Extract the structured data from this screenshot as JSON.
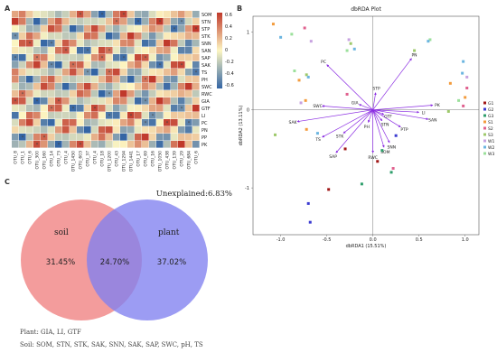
{
  "chart_data": [
    {
      "panel": "A",
      "type": "heatmap",
      "row_labels": [
        "SOM",
        "STN",
        "STP",
        "STK",
        "SNN",
        "SAN",
        "SAP",
        "SAK",
        "TS",
        "PH",
        "SWC",
        "RWC",
        "GIA",
        "GTF",
        "LI",
        "PC",
        "PN",
        "PP",
        "PK"
      ],
      "col_labels": [
        "OTU_8",
        "OTU_1",
        "OTU_6",
        "OTU_300",
        "OTU_160",
        "OTU_14",
        "OTU_73",
        "OTU_4",
        "OTU_1450",
        "OTU_603",
        "OTU_37",
        "OTU_4",
        "OTU_18",
        "OTU_1200",
        "OTU_43",
        "OTU_1294",
        "OTU_1441",
        "OTU_17",
        "OTU_69",
        "OTU_16",
        "OTU_1050",
        "OTU_438",
        "OTU_139",
        "OTU_29",
        "OTU_684",
        "OTU_6"
      ],
      "legend_ticks": [
        "0.6",
        "0.4",
        "0.2",
        "0",
        "-0.2",
        "-0.4",
        "-0.6"
      ],
      "color_scale": {
        "high": "#c0392b",
        "mid": "#fdf6c2",
        "low": "#3465a4"
      }
    },
    {
      "panel": "B",
      "type": "scatter",
      "title": "dbRDA Plot",
      "xlabel": "dbRDA1 (15.51%)",
      "ylabel": "dbRDA2 (13.11%)",
      "xlim": [
        -1.3,
        1.15
      ],
      "ylim": [
        -1.6,
        1.2
      ],
      "x_ticks": [
        "-1.0",
        "-0.5",
        "0.0",
        "0.5",
        "1.0"
      ],
      "y_ticks": [
        "1",
        "0",
        "-1"
      ],
      "legend": [
        {
          "name": "G1",
          "color": "#a01616"
        },
        {
          "name": "G2",
          "color": "#3b3bd1"
        },
        {
          "name": "G3",
          "color": "#2e9e6b"
        },
        {
          "name": "S1",
          "color": "#f39b3c"
        },
        {
          "name": "S2",
          "color": "#e0608e"
        },
        {
          "name": "S3",
          "color": "#9ec96b"
        },
        {
          "name": "W1",
          "color": "#c7a2e0"
        },
        {
          "name": "W2",
          "color": "#6bb5e0"
        },
        {
          "name": "W3",
          "color": "#9be09b"
        }
      ],
      "arrows": [
        {
          "label": "PC",
          "x": -0.5,
          "y": 0.58
        },
        {
          "label": "PN",
          "x": 0.42,
          "y": 0.66
        },
        {
          "label": "STP",
          "x": 0.03,
          "y": 0.22
        },
        {
          "label": "GIA",
          "x": -0.15,
          "y": 0.07
        },
        {
          "label": "SWC",
          "x": -0.55,
          "y": 0.05
        },
        {
          "label": "SAK",
          "x": -0.82,
          "y": -0.15
        },
        {
          "label": "PK",
          "x": 0.65,
          "y": 0.06
        },
        {
          "label": "LI",
          "x": 0.5,
          "y": -0.03
        },
        {
          "label": "SAN",
          "x": 0.6,
          "y": -0.12
        },
        {
          "label": "PTP",
          "x": 0.3,
          "y": -0.22
        },
        {
          "label": "GTF",
          "x": 0.12,
          "y": -0.06
        },
        {
          "label": "STN",
          "x": 0.1,
          "y": -0.14
        },
        {
          "label": "PH",
          "x": -0.05,
          "y": -0.16
        },
        {
          "label": "TS",
          "x": -0.55,
          "y": -0.35
        },
        {
          "label": "STK",
          "x": -0.32,
          "y": -0.3
        },
        {
          "label": "SNN",
          "x": 0.18,
          "y": -0.42
        },
        {
          "label": "SOM",
          "x": 0.12,
          "y": -0.48
        },
        {
          "label": "RWC",
          "x": 0.0,
          "y": -0.55
        },
        {
          "label": "SAP",
          "x": -0.4,
          "y": -0.55
        }
      ],
      "points": [
        {
          "g": "S1",
          "x": -1.08,
          "y": 1.1
        },
        {
          "g": "W2",
          "x": -1.0,
          "y": 0.93
        },
        {
          "g": "W3",
          "x": -0.88,
          "y": 0.97
        },
        {
          "g": "S2",
          "x": -0.74,
          "y": 1.05
        },
        {
          "g": "W1",
          "x": -0.67,
          "y": 0.88
        },
        {
          "g": "W3",
          "x": -0.85,
          "y": 0.5
        },
        {
          "g": "S3",
          "x": -0.72,
          "y": 0.45
        },
        {
          "g": "W2",
          "x": -0.7,
          "y": 0.42
        },
        {
          "g": "S1",
          "x": -0.8,
          "y": 0.38
        },
        {
          "g": "S3",
          "x": -0.24,
          "y": 0.85
        },
        {
          "g": "W1",
          "x": -0.26,
          "y": 0.9
        },
        {
          "g": "W2",
          "x": -0.2,
          "y": 0.78
        },
        {
          "g": "W3",
          "x": -0.28,
          "y": 0.76
        },
        {
          "g": "S2",
          "x": -0.28,
          "y": 0.2
        },
        {
          "g": "S1",
          "x": -0.73,
          "y": 0.12
        },
        {
          "g": "W1",
          "x": -0.78,
          "y": 0.09
        },
        {
          "g": "S3",
          "x": -1.06,
          "y": -0.32
        },
        {
          "g": "S1",
          "x": -0.72,
          "y": -0.25
        },
        {
          "g": "W2",
          "x": -0.6,
          "y": -0.3
        },
        {
          "g": "G1",
          "x": -0.48,
          "y": -1.02
        },
        {
          "g": "G3",
          "x": -0.12,
          "y": -0.95
        },
        {
          "g": "G1",
          "x": 0.05,
          "y": -0.66
        },
        {
          "g": "G2",
          "x": -0.7,
          "y": -1.2
        },
        {
          "g": "G2",
          "x": -0.68,
          "y": -1.44
        },
        {
          "g": "G1",
          "x": -0.3,
          "y": -0.5
        },
        {
          "g": "G3",
          "x": 0.2,
          "y": -0.8
        },
        {
          "g": "G3",
          "x": 0.1,
          "y": -0.52
        },
        {
          "g": "G2",
          "x": 0.25,
          "y": -0.33
        },
        {
          "g": "S2",
          "x": 0.22,
          "y": -0.75
        },
        {
          "g": "S3",
          "x": 0.45,
          "y": 0.76
        },
        {
          "g": "W3",
          "x": 0.62,
          "y": 0.9
        },
        {
          "g": "W2",
          "x": 0.6,
          "y": 0.88
        },
        {
          "g": "S1",
          "x": 0.84,
          "y": 0.34
        },
        {
          "g": "W2",
          "x": 0.98,
          "y": 0.62
        },
        {
          "g": "W2",
          "x": 0.97,
          "y": 0.47
        },
        {
          "g": "S2",
          "x": 1.02,
          "y": 0.28
        },
        {
          "g": "S1",
          "x": 1.0,
          "y": 0.16
        },
        {
          "g": "W3",
          "x": 0.93,
          "y": 0.12
        },
        {
          "g": "S3",
          "x": 0.82,
          "y": -0.02
        },
        {
          "g": "S2",
          "x": 0.98,
          "y": 0.05
        },
        {
          "g": "W1",
          "x": 1.02,
          "y": 0.42
        }
      ]
    },
    {
      "panel": "C",
      "type": "venn",
      "sets": [
        {
          "name": "soil",
          "value": "31.45%",
          "color": "#f08080"
        },
        {
          "name": "plant",
          "value": "37.02%",
          "color": "#8080f0"
        }
      ],
      "overlap": "24.70%",
      "unexplained": "Unexplained:6.83%",
      "note_plant": "Plant: GIA, LI, GTF",
      "note_soil": "Soil: SOM, STN, STK, SAK, SNN, SAK, SAP, SWC, pH, TS"
    }
  ],
  "panel_tags": {
    "a": "A",
    "b": "B",
    "c": "C"
  }
}
